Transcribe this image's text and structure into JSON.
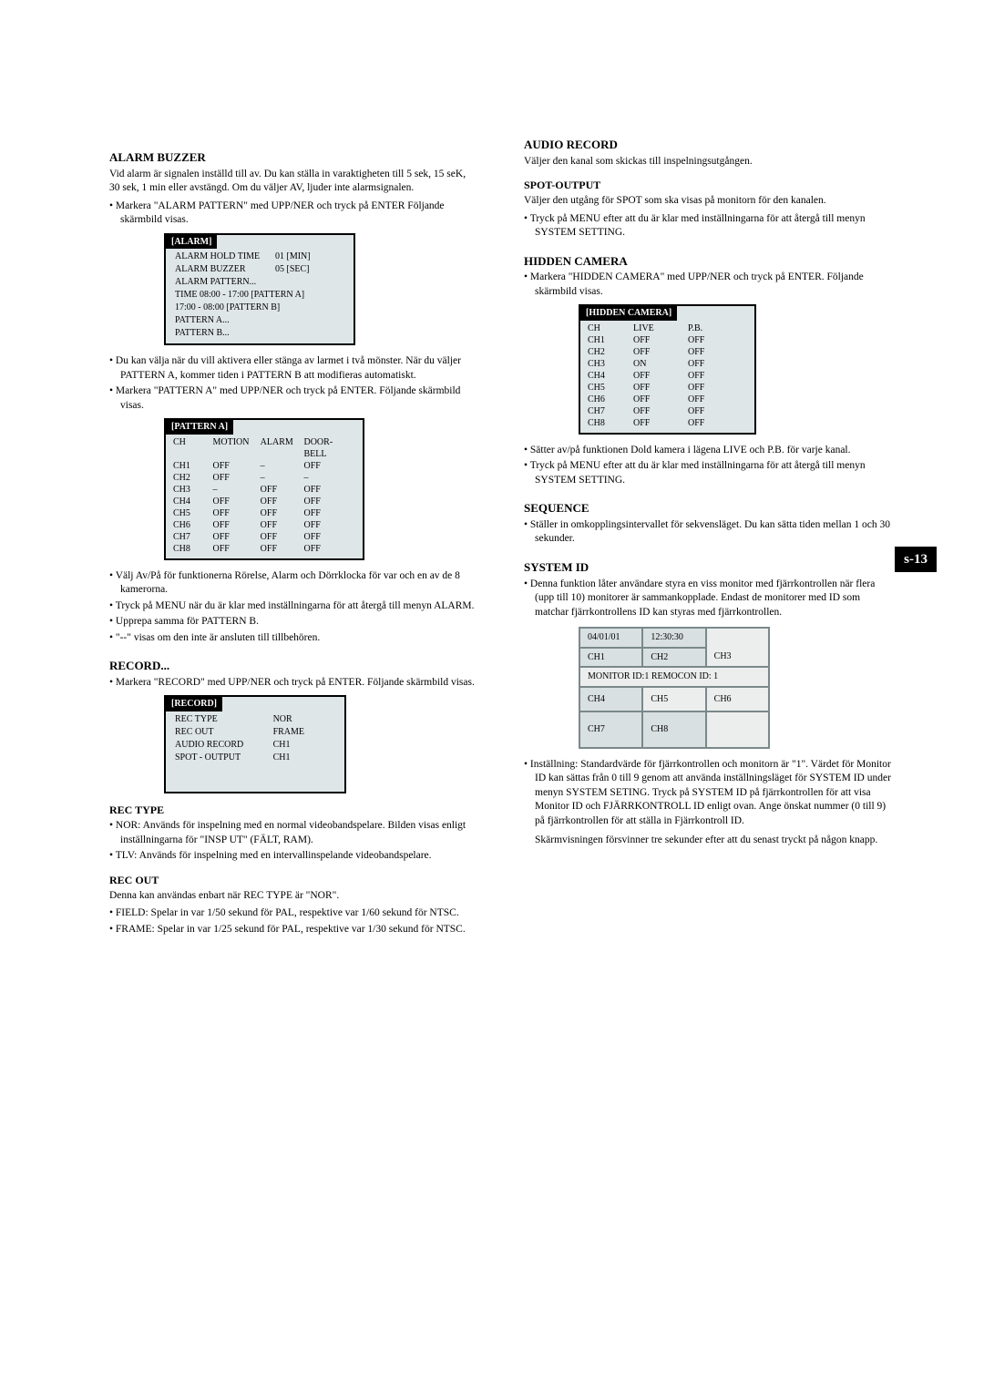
{
  "page_number": "s-13",
  "left": {
    "alarm_buzzer": {
      "title": "ALARM BUZZER",
      "p1": "Vid alarm är signalen inställd till av. Du kan ställa in varaktigheten till 5 sek, 15 seK, 30 sek, 1 min eller avstängd. Om du väljer AV, ljuder inte alarmsignalen.",
      "b1": "Markera \"ALARM PATTERN\" med UPP/NER och tryck på ENTER Följande skärmbild visas.",
      "box": {
        "title": "[ALARM]",
        "rows": [
          [
            "ALARM HOLD TIME",
            "01 [MIN]"
          ],
          [
            "ALARM BUZZER",
            "05 [SEC]"
          ],
          [
            "ALARM PATTERN...",
            ""
          ],
          [
            "TIME   08:00 - 17:00 [PATTERN A]",
            ""
          ],
          [
            "           17:00 - 08:00 [PATTERN B]",
            ""
          ],
          [
            "PATTERN A...",
            ""
          ],
          [
            "PATTERN B...",
            ""
          ]
        ]
      },
      "b2": "Du kan välja när du vill aktivera eller stänga av larmet i två mönster. När du väljer PATTERN A, kommer tiden i PATTERN B att modifieras automatiskt.",
      "b3": "Markera \"PATTERN A\" med UPP/NER och tryck på ENTER. Följande skärmbild visas.",
      "patbox": {
        "title": "[PATTERN A]",
        "header": [
          "CH",
          "MOTION",
          "ALARM",
          "DOOR-BELL"
        ],
        "rows": [
          [
            "CH1",
            "OFF",
            "–",
            "OFF"
          ],
          [
            "CH2",
            "OFF",
            "–",
            "–"
          ],
          [
            "CH3",
            "–",
            "OFF",
            "OFF"
          ],
          [
            "CH4",
            "OFF",
            "OFF",
            "OFF"
          ],
          [
            "CH5",
            "OFF",
            "OFF",
            "OFF"
          ],
          [
            "CH6",
            "OFF",
            "OFF",
            "OFF"
          ],
          [
            "CH7",
            "OFF",
            "OFF",
            "OFF"
          ],
          [
            "CH8",
            "OFF",
            "OFF",
            "OFF"
          ]
        ]
      },
      "b4": "Välj Av/På för funktionerna Rörelse, Alarm och Dörrklocka för var och en av de 8 kamerorna.",
      "b5": "Tryck på MENU när du är klar med inställningarna för att återgå till menyn ALARM.",
      "b6": "Upprepa samma för PATTERN B.",
      "b7": "\"--\" visas om den inte är ansluten till tillbehören."
    },
    "record": {
      "title": "RECORD...",
      "b1": "Markera \"RECORD\" med UPP/NER och tryck på ENTER. Följande skärmbild visas.",
      "box": {
        "title": "[RECORD]",
        "rows": [
          [
            "REC TYPE",
            "NOR"
          ],
          [
            "REC OUT",
            "FRAME"
          ],
          [
            "AUDIO RECORD",
            "CH1"
          ],
          [
            "SPOT - OUTPUT",
            "CH1"
          ]
        ]
      }
    },
    "rectype": {
      "title": "REC TYPE",
      "b1": "NOR: Används för inspelning med en normal videobandspelare. Bilden visas enligt inställningarna för \"INSP UT\" (FÄLT, RAM).",
      "b2": "TLV: Används för inspelning med en intervallinspelande videobandspelare."
    },
    "recout": {
      "title": "REC OUT",
      "p1": "Denna kan användas enbart när REC TYPE är \"NOR\".",
      "b1": "FIELD: Spelar in var 1/50 sekund för PAL, respektive var 1/60 sekund för NTSC.",
      "b2": "FRAME: Spelar in var 1/25 sekund för PAL, respektive var 1/30 sekund för NTSC."
    }
  },
  "right": {
    "audio": {
      "title": "AUDIO RECORD",
      "p1": "Väljer den kanal som skickas till inspelningsutgången."
    },
    "spot": {
      "title": "SPOT-OUTPUT",
      "p1": "Väljer den utgång för SPOT som ska visas på monitorn för den kanalen.",
      "b1": "Tryck på MENU efter att du är klar med inställningarna för att återgå till menyn SYSTEM SETTING."
    },
    "hidden": {
      "title": "HIDDEN CAMERA",
      "b1": "Markera \"HIDDEN CAMERA\" med UPP/NER och tryck på ENTER. Följande skärmbild visas.",
      "box": {
        "title": "[HIDDEN CAMERA]",
        "header": [
          "CH",
          "LIVE",
          "P.B."
        ],
        "rows": [
          [
            "CH1",
            "OFF",
            "OFF"
          ],
          [
            "CH2",
            "OFF",
            "OFF"
          ],
          [
            "CH3",
            "ON",
            "OFF"
          ],
          [
            "CH4",
            "OFF",
            "OFF"
          ],
          [
            "CH5",
            "OFF",
            "OFF"
          ],
          [
            "CH6",
            "OFF",
            "OFF"
          ],
          [
            "CH7",
            "OFF",
            "OFF"
          ],
          [
            "CH8",
            "OFF",
            "OFF"
          ]
        ]
      },
      "b2": "Sätter av/på funktionen Dold kamera i lägena LIVE och P.B. för varje kanal.",
      "b3": "Tryck på MENU efter att du är klar med inställningarna för att återgå till menyn SYSTEM SETTING."
    },
    "sequence": {
      "title": "SEQUENCE",
      "b1": "Ställer in omkopplingsintervallet för sekvensläget. Du kan sätta tiden mellan 1 och 30 sekunder."
    },
    "system": {
      "title": "SYSTEM ID",
      "b1": "Denna funktion låter användare styra en viss monitor med fjärrkontrollen när flera (upp till 10) monitorer är sammankopplade. Endast de monitorer med ID som matchar fjärrkontrollens ID kan styras med fjärrkontrollen.",
      "monitor": {
        "r1": [
          "04/01/01",
          "12:30:30",
          ""
        ],
        "r2": [
          "CH1",
          "CH2",
          "CH3"
        ],
        "mid": "MONITOR ID:1    REMOCON ID: 1",
        "r3": [
          "CH4",
          "CH5",
          "CH6"
        ],
        "r4": [
          "CH7",
          "CH8",
          ""
        ]
      },
      "b2": "Inställning: Standardvärde för fjärrkontrollen och monitorn är \"1\". Värdet för Monitor ID kan sättas från 0 till 9 genom att använda inställningsläget för SYSTEM ID under menyn SYSTEM SETING. Tryck på SYSTEM ID på fjärrkontrollen för att visa Monitor ID och FJÄRRKONTROLL ID enligt ovan. Ange önskat nummer (0 till 9) på fjärrkontrollen för att ställa in Fjärrkontroll ID.",
      "p2": "Skärmvisningen försvinner tre sekunder efter att du senast tryckt på någon knapp."
    }
  }
}
